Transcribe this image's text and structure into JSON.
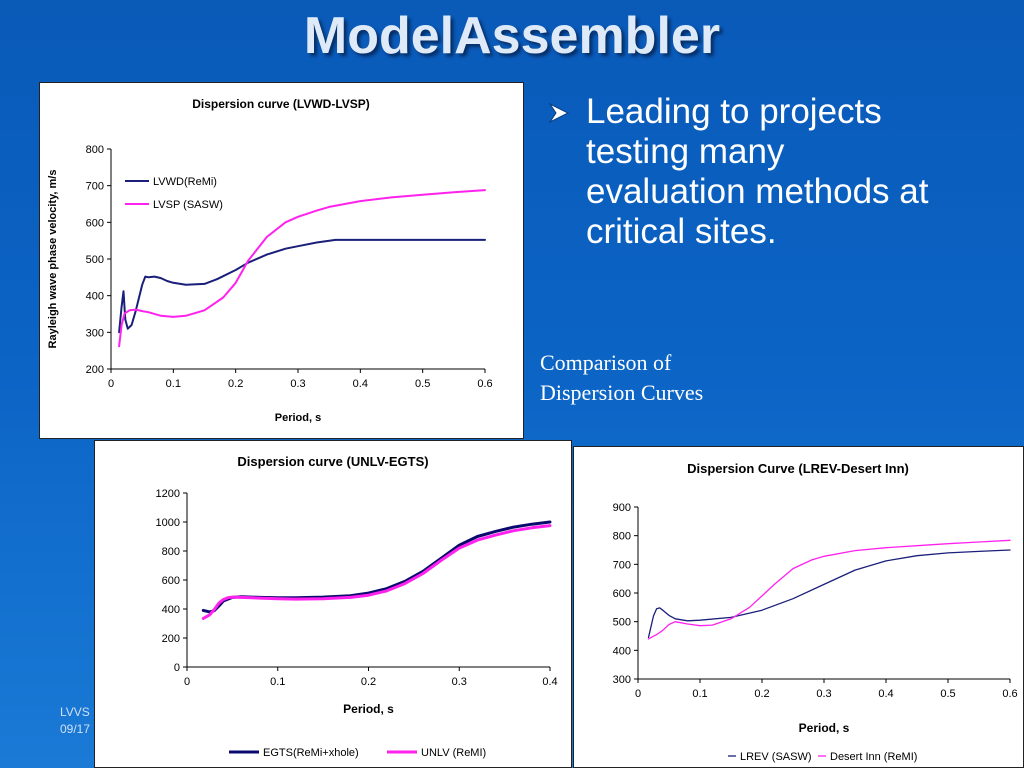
{
  "slide": {
    "title": "ModelAssembler",
    "bullet": "Leading to projects testing many evaluation methods at critical sites.",
    "caption_lines": [
      "Comparison of",
      "Dispersion Curves"
    ],
    "footer_lines": [
      "LVVS",
      "09/17"
    ],
    "background_color": "#0b63c4"
  },
  "chart_data": [
    {
      "type": "line",
      "title": "Dispersion curve (LVWD-LVSP)",
      "xlabel": "Period, s",
      "ylabel": "Rayleigh wave phase velocity, m/s",
      "xlim": [
        0,
        0.6
      ],
      "ylim": [
        200,
        800
      ],
      "xticks": [
        "0",
        "0.1",
        "0.2",
        "0.3",
        "0.4",
        "0.5",
        "0.6"
      ],
      "yticks": [
        "200",
        "300",
        "400",
        "500",
        "600",
        "700",
        "800"
      ],
      "grid": false,
      "legend": "inside-top-left",
      "series": [
        {
          "name": "LVWD(ReMi)",
          "color": "#1a1f7a",
          "x": [
            0.013,
            0.017,
            0.02,
            0.023,
            0.027,
            0.033,
            0.04,
            0.05,
            0.055,
            0.06,
            0.07,
            0.08,
            0.09,
            0.1,
            0.12,
            0.15,
            0.17,
            0.2,
            0.22,
            0.25,
            0.28,
            0.3,
            0.33,
            0.35,
            0.36,
            0.4,
            0.45,
            0.5,
            0.55,
            0.6
          ],
          "y": [
            300,
            370,
            412,
            335,
            310,
            320,
            360,
            430,
            452,
            450,
            452,
            448,
            440,
            435,
            430,
            432,
            445,
            470,
            490,
            512,
            528,
            535,
            545,
            550,
            552,
            552,
            552,
            552,
            552,
            552
          ]
        },
        {
          "name": "LVSP (SASW)",
          "color": "#ff22ee",
          "x": [
            0.013,
            0.017,
            0.022,
            0.03,
            0.04,
            0.05,
            0.06,
            0.08,
            0.1,
            0.12,
            0.15,
            0.18,
            0.2,
            0.22,
            0.25,
            0.28,
            0.3,
            0.33,
            0.35,
            0.4,
            0.45,
            0.5,
            0.55,
            0.6
          ],
          "y": [
            262,
            320,
            352,
            360,
            362,
            358,
            355,
            345,
            342,
            345,
            360,
            395,
            435,
            495,
            560,
            600,
            615,
            632,
            642,
            658,
            668,
            675,
            682,
            688
          ]
        }
      ]
    },
    {
      "type": "line",
      "title": "Dispersion curve (UNLV-EGTS)",
      "xlabel": "Period, s",
      "ylabel": "",
      "xlim": [
        0,
        0.4
      ],
      "ylim": [
        0,
        1200
      ],
      "xticks": [
        "0",
        "0.1",
        "0.2",
        "0.3",
        "0.4"
      ],
      "yticks": [
        "0",
        "200",
        "400",
        "600",
        "800",
        "1000",
        "1200"
      ],
      "grid": false,
      "legend": "bottom",
      "series": [
        {
          "name": "EGTS(ReMi+xhole)",
          "color": "#0a0a6e",
          "x": [
            0.018,
            0.025,
            0.03,
            0.035,
            0.04,
            0.05,
            0.06,
            0.08,
            0.1,
            0.12,
            0.15,
            0.18,
            0.2,
            0.22,
            0.24,
            0.26,
            0.28,
            0.3,
            0.32,
            0.34,
            0.36,
            0.38,
            0.4
          ],
          "y": [
            390,
            380,
            388,
            420,
            455,
            480,
            485,
            480,
            478,
            478,
            482,
            492,
            510,
            540,
            590,
            660,
            750,
            840,
            900,
            935,
            965,
            985,
            1000
          ]
        },
        {
          "name": "UNLV (ReMI)",
          "color": "#ff22ee",
          "x": [
            0.018,
            0.025,
            0.03,
            0.035,
            0.04,
            0.045,
            0.05,
            0.06,
            0.08,
            0.1,
            0.12,
            0.15,
            0.18,
            0.2,
            0.22,
            0.24,
            0.26,
            0.28,
            0.3,
            0.32,
            0.34,
            0.36,
            0.38,
            0.4
          ],
          "y": [
            335,
            360,
            395,
            440,
            465,
            478,
            482,
            480,
            475,
            470,
            468,
            470,
            480,
            495,
            525,
            575,
            645,
            735,
            820,
            875,
            910,
            940,
            960,
            975
          ]
        }
      ]
    },
    {
      "type": "line",
      "title": "Dispersion Curve (LREV-Desert Inn)",
      "xlabel": "Period, s",
      "ylabel": "",
      "xlim": [
        0,
        0.6
      ],
      "ylim": [
        300,
        900
      ],
      "xticks": [
        "0",
        "0.1",
        "0.2",
        "0.3",
        "0.4",
        "0.5",
        "0.6"
      ],
      "yticks": [
        "300",
        "400",
        "500",
        "600",
        "700",
        "800",
        "900"
      ],
      "grid": false,
      "legend": "bottom",
      "series": [
        {
          "name": "LREV (SASW)",
          "color": "#1a1f7a",
          "x": [
            0.017,
            0.025,
            0.03,
            0.035,
            0.04,
            0.05,
            0.06,
            0.08,
            0.1,
            0.15,
            0.2,
            0.25,
            0.3,
            0.35,
            0.4,
            0.45,
            0.5,
            0.55,
            0.6
          ],
          "y": [
            445,
            520,
            545,
            548,
            540,
            522,
            510,
            503,
            505,
            515,
            540,
            580,
            630,
            680,
            712,
            730,
            740,
            745,
            750
          ]
        },
        {
          "name": "Desert Inn (ReMI)",
          "color": "#ff22ee",
          "x": [
            0.017,
            0.03,
            0.04,
            0.05,
            0.06,
            0.08,
            0.1,
            0.12,
            0.15,
            0.18,
            0.2,
            0.22,
            0.25,
            0.28,
            0.3,
            0.35,
            0.4,
            0.45,
            0.5,
            0.55,
            0.6
          ],
          "y": [
            440,
            455,
            470,
            490,
            500,
            492,
            486,
            488,
            510,
            550,
            590,
            630,
            685,
            715,
            728,
            748,
            758,
            765,
            772,
            778,
            784
          ]
        }
      ]
    }
  ]
}
